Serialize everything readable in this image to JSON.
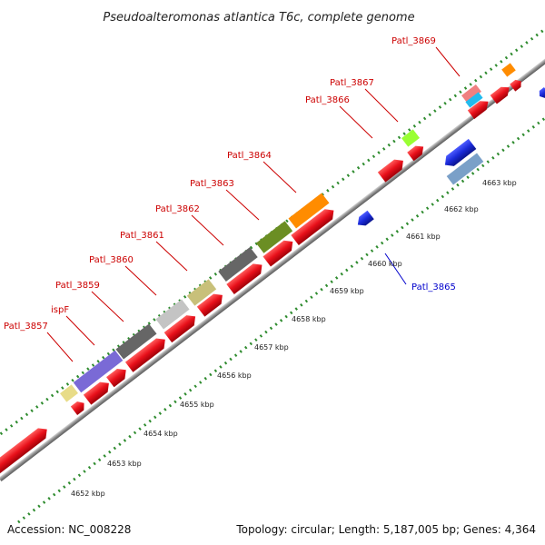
{
  "title": "Pseudoalteromonas atlantica T6c, complete genome",
  "footer": {
    "accession": "Accession: NC_008228",
    "summary": "Topology: circular; Length: 5,187,005 bp; Genes: 4,364"
  },
  "colors": {
    "forward_cds": "#e8101a",
    "reverse_cds": "#1a2ad8",
    "backbone": "#8c8c8c",
    "dots": "#2e8b2e",
    "label_forward": "#cc0000",
    "label_reverse": "#0000cc"
  },
  "kbp_labels": [
    "4652 kbp",
    "4653 kbp",
    "4654 kbp",
    "4655 kbp",
    "4656 kbp",
    "4657 kbp",
    "4658 kbp",
    "4659 kbp",
    "4660 kbp",
    "4661 kbp",
    "4662 kbp",
    "4663 kbp"
  ],
  "gene_labels": [
    {
      "text": "Patl_3857",
      "strand": "forward"
    },
    {
      "text": "ispF",
      "strand": "forward"
    },
    {
      "text": "Patl_3859",
      "strand": "forward"
    },
    {
      "text": "Patl_3860",
      "strand": "forward"
    },
    {
      "text": "Patl_3861",
      "strand": "forward"
    },
    {
      "text": "Patl_3862",
      "strand": "forward"
    },
    {
      "text": "Patl_3863",
      "strand": "forward"
    },
    {
      "text": "Patl_3864",
      "strand": "forward"
    },
    {
      "text": "Patl_3866",
      "strand": "forward"
    },
    {
      "text": "Patl_3867",
      "strand": "forward"
    },
    {
      "text": "Patl_3869",
      "strand": "forward"
    },
    {
      "text": "Patl_3865",
      "strand": "reverse"
    }
  ]
}
